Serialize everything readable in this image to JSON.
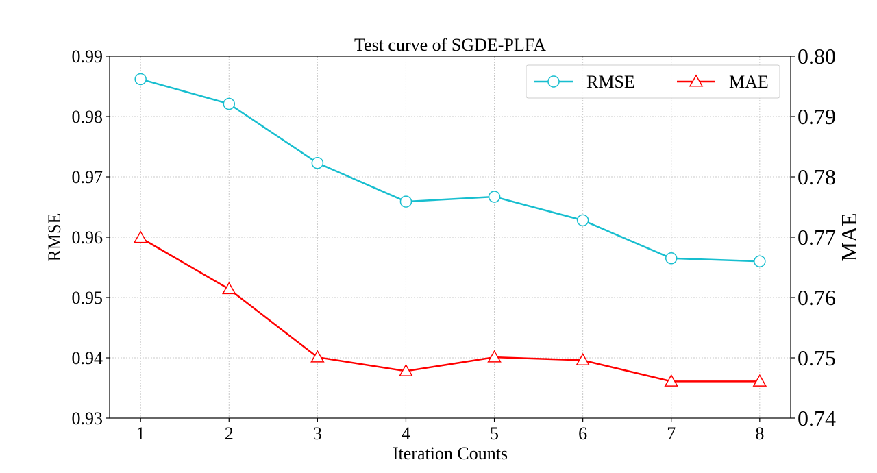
{
  "chart_data": {
    "type": "line",
    "title": "Test curve of SGDE-PLFA",
    "xlabel": "Iteration Counts",
    "ylabel_left": "RMSE",
    "ylabel_right": "MAE",
    "x": [
      1,
      2,
      3,
      4,
      5,
      6,
      7,
      8
    ],
    "x_ticks": [
      "1",
      "2",
      "3",
      "4",
      "5",
      "6",
      "7",
      "8"
    ],
    "xlim": [
      0.65,
      8.35
    ],
    "ylim_left": [
      0.93,
      0.99
    ],
    "ylim_right": [
      0.74,
      0.8
    ],
    "y_ticks_left": [
      "0.93",
      "0.94",
      "0.95",
      "0.96",
      "0.97",
      "0.98",
      "0.99"
    ],
    "y_ticks_right": [
      "0.74",
      "0.75",
      "0.76",
      "0.77",
      "0.78",
      "0.79",
      "0.80"
    ],
    "grid": true,
    "legend_position": "top-right",
    "series": [
      {
        "name": "RMSE",
        "axis": "left",
        "marker": "circle",
        "color": "#17becf",
        "values": [
          0.9862,
          0.9821,
          0.9723,
          0.9659,
          0.9667,
          0.9628,
          0.9565,
          0.956
        ]
      },
      {
        "name": "MAE",
        "axis": "right",
        "marker": "triangle",
        "color": "#ff0000",
        "values": [
          0.7699,
          0.7614,
          0.7501,
          0.7478,
          0.7501,
          0.7496,
          0.7461,
          0.7461
        ]
      }
    ]
  }
}
